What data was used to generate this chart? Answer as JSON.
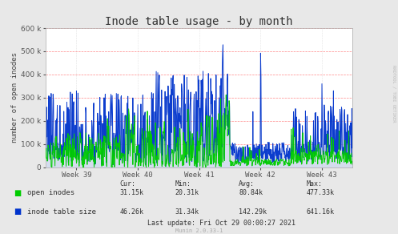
{
  "title": "Inode table usage - by month",
  "ylabel": "number of open inodes",
  "xlabel_ticks": [
    "Week 39",
    "Week 40",
    "Week 41",
    "Week 42",
    "Week 43"
  ],
  "ylim": [
    0,
    600000
  ],
  "yticks": [
    0,
    100000,
    200000,
    300000,
    400000,
    500000,
    600000
  ],
  "background_color": "#e8e8e8",
  "plot_bg_color": "#ffffff",
  "hgrid_color": "#ff8888",
  "vgrid_color": "#cccccc",
  "open_inodes_color": "#00cc00",
  "inode_table_color": "#0033cc",
  "inode_fill_color": "#aabbdd",
  "legend_open": "open inodes",
  "legend_table": "inode table size",
  "stat_cur_open": "31.15k",
  "stat_cur_table": "46.26k",
  "stat_min_open": "20.31k",
  "stat_min_table": "31.34k",
  "stat_avg_open": "80.84k",
  "stat_avg_table": "142.29k",
  "stat_max_open": "477.33k",
  "stat_max_table": "641.16k",
  "last_update": "Last update: Fri Oct 29 00:00:27 2021",
  "munin_label": "Munin 2.0.33-1",
  "rrdtool_label": "RRDTOOL / TOBI OETIKER",
  "title_fontsize": 10,
  "axis_fontsize": 6.5,
  "legend_fontsize": 6.5,
  "stat_fontsize": 6.0,
  "tick_color": "#555555"
}
